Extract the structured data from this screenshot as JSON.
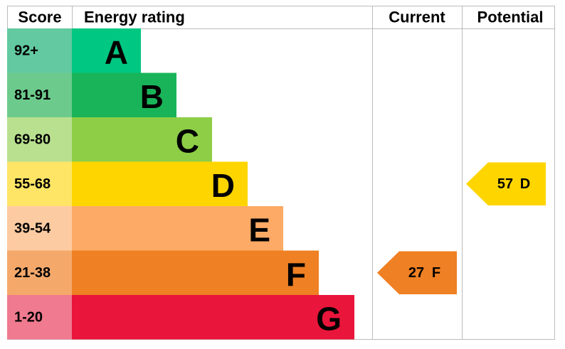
{
  "header": {
    "score": "Score",
    "rating": "Energy rating",
    "current": "Current",
    "potential": "Potential"
  },
  "bands": [
    {
      "score": "92+",
      "letter": "A",
      "color": "#00c781",
      "score_color": "#62c9a0"
    },
    {
      "score": "81-91",
      "letter": "B",
      "color": "#19b459",
      "score_color": "#6ccb8c"
    },
    {
      "score": "69-80",
      "letter": "C",
      "color": "#8dce46",
      "score_color": "#b8e08f"
    },
    {
      "score": "55-68",
      "letter": "D",
      "color": "#ffd500",
      "score_color": "#ffe566"
    },
    {
      "score": "39-54",
      "letter": "E",
      "color": "#fcaa65",
      "score_color": "#fdcba2"
    },
    {
      "score": "21-38",
      "letter": "F",
      "color": "#ef8023",
      "score_color": "#f4a96b"
    },
    {
      "score": "1-20",
      "letter": "G",
      "color": "#e9153b",
      "score_color": "#f07a8f"
    }
  ],
  "current": {
    "value": 27,
    "letter": "F"
  },
  "potential": {
    "value": 57,
    "letter": "D"
  }
}
